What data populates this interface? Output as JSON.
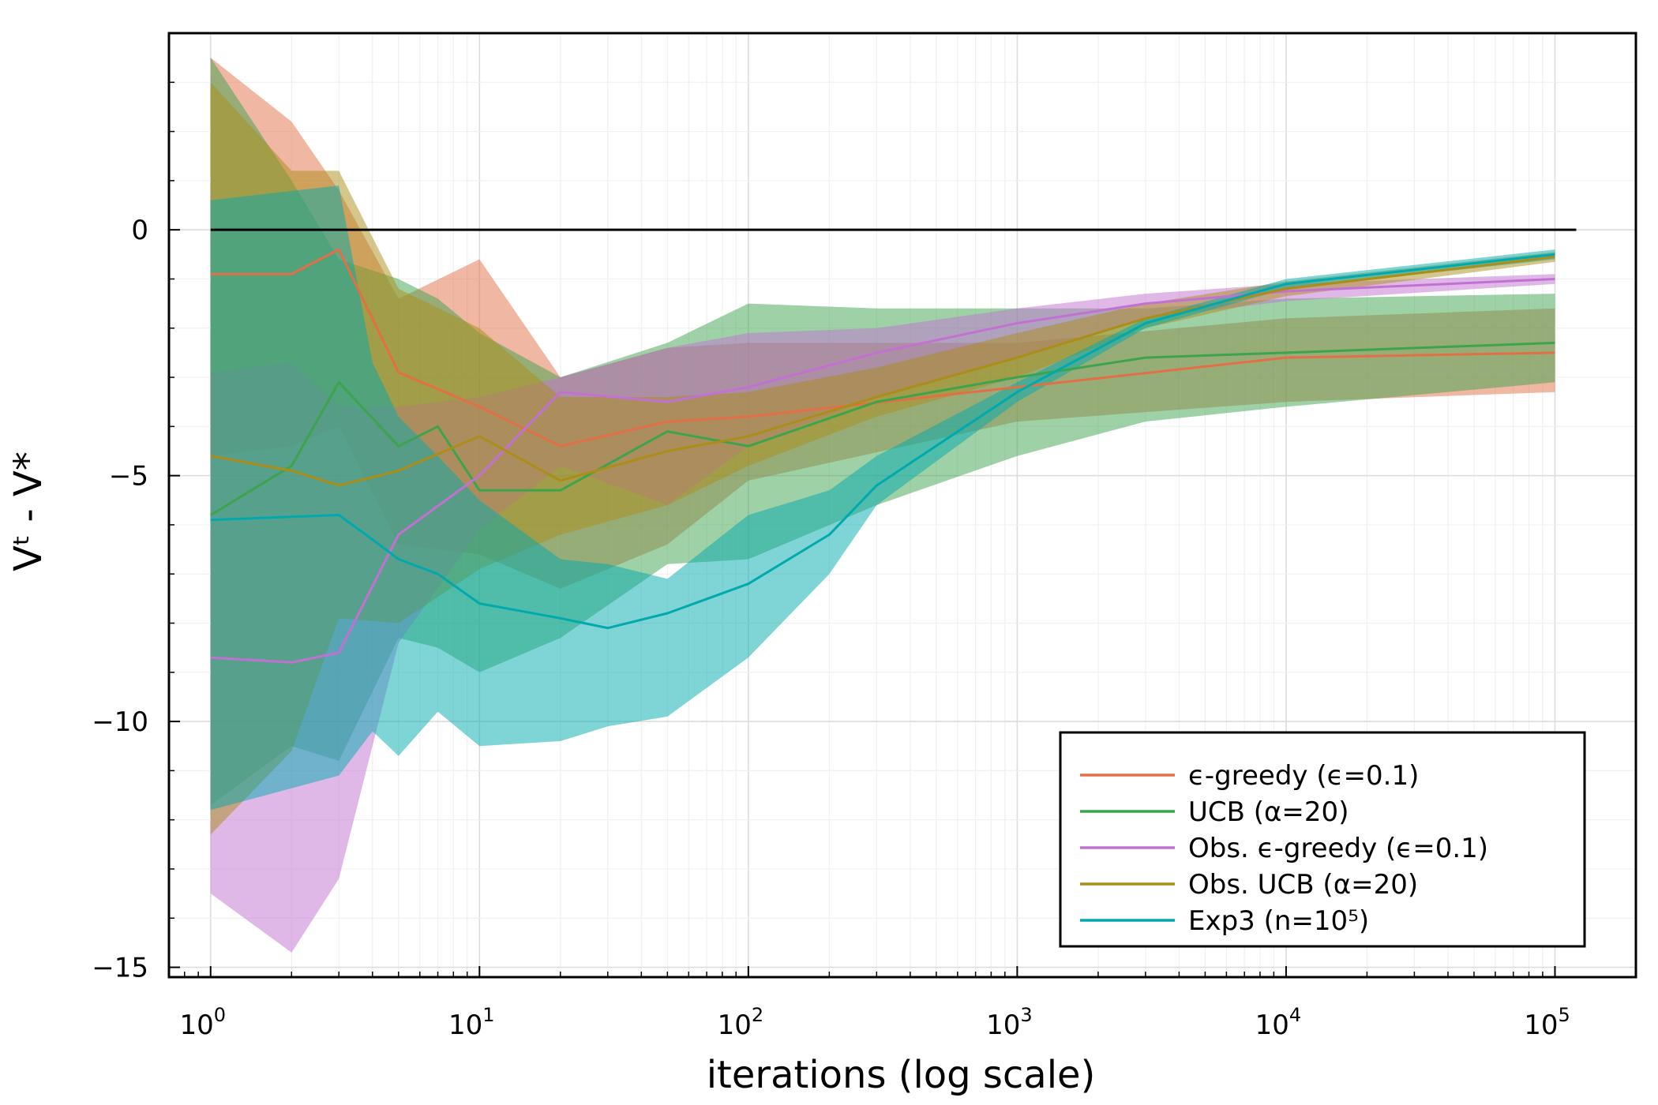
{
  "chart_data": {
    "type": "line",
    "xlabel": "iterations (log scale)",
    "ylabel": "Vᵗ - V*",
    "x_scale": "log10",
    "xlim": [
      0.7,
      200000
    ],
    "ylim": [
      -15.2,
      4.0
    ],
    "grid": true,
    "legend_position": "bottom-right",
    "x_ticks": [
      {
        "value": 1,
        "base": "10",
        "exp": "0"
      },
      {
        "value": 10,
        "base": "10",
        "exp": "1"
      },
      {
        "value": 100,
        "base": "10",
        "exp": "2"
      },
      {
        "value": 1000,
        "base": "10",
        "exp": "3"
      },
      {
        "value": 10000,
        "base": "10",
        "exp": "4"
      },
      {
        "value": 100000,
        "base": "10",
        "exp": "5"
      }
    ],
    "y_ticks": [
      {
        "value": 0,
        "label": "0"
      },
      {
        "value": -5,
        "label": "−5"
      },
      {
        "value": -10,
        "label": "−10"
      },
      {
        "value": -15,
        "label": "−15"
      }
    ],
    "reference_line": {
      "y": 0,
      "x_range": [
        1,
        120000
      ],
      "color": "#000000"
    },
    "series": [
      {
        "name": "ϵ-greedy (ϵ=0.1)",
        "color": "#e26f46",
        "x": [
          1,
          2,
          3,
          5,
          10,
          20,
          50,
          100,
          1000,
          10000,
          100000
        ],
        "y": [
          -0.9,
          -0.9,
          -0.4,
          -2.9,
          -3.6,
          -4.4,
          -3.9,
          -3.8,
          -3.2,
          -2.6,
          -2.5
        ],
        "lower": [
          -4.6,
          -4.4,
          -4.0,
          -6.4,
          -6.6,
          -7.3,
          -6.4,
          -5.1,
          -3.9,
          -3.5,
          -3.3
        ],
        "upper": [
          3.5,
          2.2,
          0.8,
          -1.4,
          -0.6,
          -3.0,
          -2.4,
          -2.3,
          -2.3,
          -1.8,
          -1.6
        ]
      },
      {
        "name": "UCB (α=20)",
        "color": "#3da44d",
        "x": [
          1,
          2,
          3,
          5,
          7,
          10,
          20,
          50,
          100,
          300,
          1000,
          3000,
          10000,
          100000
        ],
        "y": [
          -5.8,
          -4.8,
          -3.1,
          -4.4,
          -4.0,
          -5.3,
          -5.3,
          -4.1,
          -4.4,
          -3.5,
          -3.0,
          -2.6,
          -2.5,
          -2.3
        ],
        "lower": [
          -11.7,
          -10.5,
          -10.8,
          -8.3,
          -8.5,
          -9.0,
          -8.3,
          -6.8,
          -6.7,
          -5.6,
          -4.6,
          -3.9,
          -3.6,
          -3.1
        ],
        "upper": [
          3.5,
          1.0,
          -0.6,
          -1.0,
          -1.4,
          -2.1,
          -3.0,
          -2.3,
          -1.5,
          -1.6,
          -1.6,
          -1.6,
          -1.4,
          -1.3
        ]
      },
      {
        "name": "Obs. ϵ-greedy (ϵ=0.1)",
        "color": "#c271d2",
        "x": [
          1,
          2,
          3,
          5,
          10,
          20,
          50,
          100,
          300,
          1000,
          3000,
          10000,
          100000
        ],
        "y": [
          -8.7,
          -8.8,
          -8.6,
          -6.2,
          -5.0,
          -3.3,
          -3.5,
          -3.2,
          -2.5,
          -1.9,
          -1.5,
          -1.25,
          -1.0
        ],
        "lower": [
          -13.5,
          -14.7,
          -13.2,
          -8.4,
          -6.1,
          -4.8,
          -5.6,
          -4.4,
          -3.4,
          -2.6,
          -1.8,
          -1.45,
          -1.1
        ],
        "upper": [
          -2.9,
          -2.7,
          -3.6,
          -3.6,
          -3.4,
          -3.0,
          -2.4,
          -2.1,
          -2.0,
          -1.6,
          -1.3,
          -1.1,
          -0.9
        ]
      },
      {
        "name": "Obs. UCB (α=20)",
        "color": "#ac8d18",
        "x": [
          1,
          2,
          3,
          5,
          10,
          20,
          50,
          100,
          300,
          1000,
          3000,
          10000,
          100000
        ],
        "y": [
          -4.6,
          -4.9,
          -5.2,
          -4.9,
          -4.2,
          -5.1,
          -4.5,
          -4.2,
          -3.4,
          -2.6,
          -1.8,
          -1.2,
          -0.55
        ],
        "lower": [
          -12.3,
          -10.6,
          -7.9,
          -8.0,
          -6.9,
          -6.2,
          -5.6,
          -4.8,
          -3.8,
          -3.0,
          -2.0,
          -1.35,
          -0.65
        ],
        "upper": [
          3.0,
          1.2,
          1.2,
          -1.2,
          -2.0,
          -3.4,
          -3.4,
          -3.3,
          -2.8,
          -2.1,
          -1.5,
          -1.05,
          -0.45
        ]
      },
      {
        "name": "Exp3 (n=10⁵)",
        "color": "#00a9ad",
        "x": [
          1,
          3,
          4,
          5,
          7,
          10,
          20,
          30,
          50,
          100,
          200,
          300,
          1000,
          3000,
          10000,
          100000
        ],
        "y": [
          -5.9,
          -5.8,
          -6.3,
          -6.7,
          -7.0,
          -7.6,
          -7.9,
          -8.1,
          -7.8,
          -7.2,
          -6.2,
          -5.2,
          -3.3,
          -1.9,
          -1.1,
          -0.5
        ],
        "lower": [
          -11.8,
          -11.1,
          -10.2,
          -10.7,
          -9.8,
          -10.5,
          -10.4,
          -10.1,
          -9.9,
          -8.7,
          -7.0,
          -5.6,
          -3.5,
          -2.0,
          -1.2,
          -0.6
        ],
        "upper": [
          0.6,
          0.9,
          -2.7,
          -3.8,
          -4.6,
          -5.5,
          -6.7,
          -6.8,
          -7.1,
          -5.8,
          -5.3,
          -4.6,
          -3.1,
          -1.8,
          -1.0,
          -0.4
        ]
      }
    ]
  }
}
